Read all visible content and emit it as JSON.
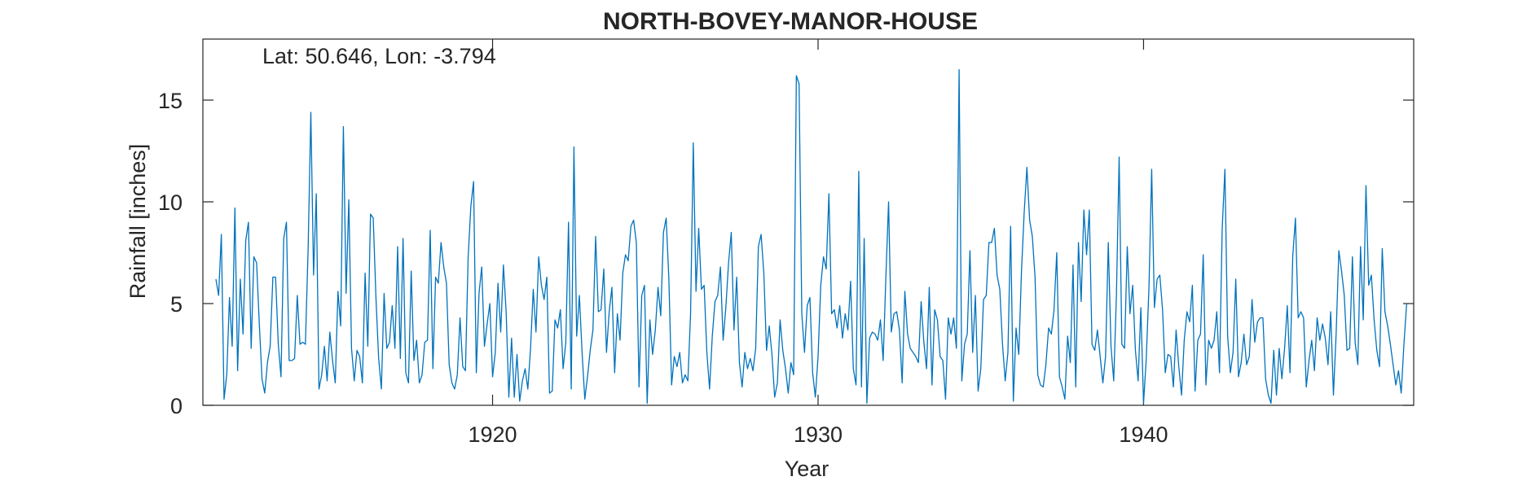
{
  "chart_data": {
    "type": "line",
    "title": "NORTH-BOVEY-MANOR-HOUSE",
    "annotation": "Lat: 50.646, Lon: -3.794",
    "xlabel": "Year",
    "ylabel": "Rainfall [inches]",
    "xlim": [
      1911.1,
      1948.3
    ],
    "ylim": [
      0,
      18
    ],
    "xticks": [
      1920,
      1930,
      1940
    ],
    "xtick_labels": [
      "1920",
      "1930",
      "1940"
    ],
    "yticks": [
      0,
      5,
      10,
      15
    ],
    "ytick_labels": [
      "0",
      "5",
      "10",
      "15"
    ],
    "grid": false,
    "box": true,
    "line_color": "#0072BD",
    "series": [
      {
        "x_start": 1911.5,
        "x_step": 0.08333333333333333,
        "values": [
          6.2,
          5.4,
          8.4,
          0.3,
          1.5,
          5.3,
          2.9,
          9.7,
          1.7,
          6.2,
          3.5,
          8.1,
          9.0,
          2.8,
          7.3,
          7.0,
          4.0,
          1.3,
          0.6,
          2.1,
          2.9,
          6.3,
          6.3,
          3.0,
          1.4,
          8.2,
          9.0,
          2.2,
          2.2,
          2.3,
          5.4,
          3.0,
          3.1,
          3.0,
          7.7,
          14.4,
          6.4,
          10.4,
          0.8,
          1.5,
          2.9,
          1.2,
          3.6,
          2.2,
          1.1,
          5.6,
          3.9,
          13.7,
          5.5,
          10.1,
          2.8,
          1.2,
          2.7,
          2.4,
          1.1,
          6.5,
          2.9,
          9.4,
          9.2,
          5.3,
          2.3,
          0.8,
          5.5,
          2.8,
          3.1,
          4.9,
          2.8,
          7.8,
          2.3,
          8.2,
          1.6,
          1.1,
          6.6,
          2.2,
          3.2,
          1.1,
          1.5,
          3.1,
          3.2,
          8.6,
          1.8,
          6.3,
          6.0,
          8.0,
          6.8,
          6.0,
          2.0,
          1.1,
          0.8,
          1.5,
          4.3,
          1.9,
          1.7,
          7.3,
          9.8,
          11.0,
          1.6,
          5.5,
          6.8,
          2.9,
          4.0,
          5.0,
          1.4,
          2.6,
          6.0,
          3.6,
          6.9,
          4.6,
          0.4,
          3.3,
          0.4,
          2.5,
          0.2,
          1.2,
          1.8,
          0.8,
          2.8,
          5.7,
          3.6,
          7.3,
          5.9,
          5.2,
          6.3,
          0.6,
          0.7,
          4.2,
          3.8,
          4.7,
          1.8,
          3.1,
          9.0,
          0.8,
          12.7,
          3.4,
          5.4,
          2.6,
          0.3,
          1.4,
          2.7,
          3.7,
          8.3,
          4.6,
          4.7,
          6.7,
          2.6,
          4.6,
          5.8,
          1.6,
          4.5,
          3.2,
          6.5,
          7.4,
          7.1,
          8.8,
          9.1,
          8.0,
          0.9,
          5.4,
          5.9,
          0.1,
          4.2,
          2.5,
          3.7,
          5.8,
          4.4,
          8.5,
          9.2,
          6.2,
          1.0,
          2.4,
          1.9,
          2.6,
          1.1,
          1.5,
          1.2,
          4.5,
          12.9,
          5.6,
          8.7,
          5.7,
          5.9,
          2.6,
          0.8,
          3.4,
          5.1,
          5.4,
          6.8,
          3.2,
          4.8,
          7.0,
          8.5,
          3.7,
          6.3,
          2.1,
          0.9,
          2.6,
          1.8,
          2.3,
          1.7,
          2.8,
          7.8,
          8.4,
          6.5,
          2.7,
          3.9,
          2.5,
          0.4,
          1.1,
          4.2,
          2.7,
          1.8,
          0.6,
          2.1,
          1.5,
          16.2,
          15.8,
          4.5,
          2.6,
          4.9,
          5.3,
          1.6,
          0.4,
          2.4,
          5.9,
          7.3,
          6.7,
          10.4,
          4.5,
          4.7,
          3.8,
          4.9,
          3.3,
          4.5,
          3.7,
          6.1,
          1.8,
          1.0,
          11.5,
          0.9,
          8.2,
          0.1,
          3.3,
          3.6,
          3.5,
          3.2,
          4.2,
          2.2,
          6.3,
          10.0,
          3.6,
          4.5,
          4.6,
          3.7,
          1.1,
          5.6,
          3.5,
          2.8,
          2.6,
          2.4,
          2.1,
          5.1,
          3.1,
          1.8,
          5.8,
          1.0,
          4.7,
          4.2,
          2.4,
          2.2,
          0.3,
          4.3,
          3.5,
          4.3,
          2.8,
          16.5,
          1.2,
          3.0,
          3.5,
          7.6,
          2.6,
          5.4,
          0.7,
          1.8,
          5.2,
          5.4,
          8.0,
          8.0,
          8.7,
          6.4,
          5.7,
          3.0,
          1.2,
          2.6,
          8.8,
          0.2,
          3.8,
          2.5,
          6.6,
          9.5,
          11.7,
          9.1,
          8.3,
          6.3,
          1.5,
          1.0,
          0.9,
          2.0,
          3.8,
          3.5,
          4.7,
          7.5,
          1.4,
          0.9,
          0.3,
          3.4,
          2.1,
          6.9,
          0.9,
          8.0,
          5.1,
          9.6,
          7.4,
          9.6,
          3.0,
          2.7,
          3.7,
          2.4,
          1.1,
          2.4,
          8.0,
          2.9,
          1.2,
          5.4,
          12.2,
          3.0,
          2.8,
          7.8,
          4.5,
          5.9,
          2.7,
          1.2,
          4.8,
          0.1,
          2.3,
          5.8,
          11.6,
          4.8,
          6.2,
          6.4,
          4.7,
          1.6,
          2.5,
          2.4,
          0.9,
          3.7,
          1.9,
          0.5,
          3.2,
          4.6,
          4.1,
          5.9,
          0.7,
          3.2,
          3.5,
          7.4,
          1.0,
          3.2,
          2.8,
          3.2,
          4.6,
          1.6,
          8.7,
          11.6,
          3.4,
          1.6,
          2.6,
          6.2,
          1.4,
          2.1,
          3.5,
          2.0,
          2.4,
          5.2,
          3.1,
          4.1,
          4.3,
          4.3,
          1.3,
          0.5,
          0.1,
          2.7,
          0.5,
          2.8,
          1.3,
          2.8,
          4.9,
          1.6,
          7.3,
          9.2,
          4.3,
          4.6,
          4.3,
          0.9,
          2.2,
          3.2,
          1.7,
          4.3,
          3.2,
          4.0,
          3.3,
          2.0,
          4.6,
          0.5,
          3.5,
          7.6,
          6.6,
          5.4,
          2.7,
          2.8,
          7.3,
          3.1,
          2.0,
          7.8,
          4.2,
          10.8,
          5.9,
          6.4,
          4.2,
          2.7,
          1.9,
          7.7,
          4.6,
          3.9,
          3.0,
          2.0,
          1.0,
          1.7,
          0.6,
          3.0,
          5.0
        ]
      }
    ]
  }
}
